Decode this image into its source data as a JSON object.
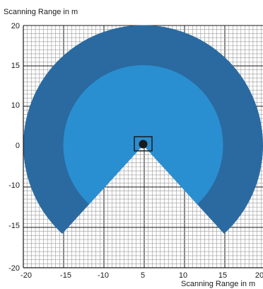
{
  "chart_data": {
    "type": "scanning-range-diagram",
    "title": "Scanning Range in m",
    "xlabel": "Scanning Range in m",
    "ylabel": "",
    "xlim": [
      -20,
      20
    ],
    "ylim": [
      -20,
      20
    ],
    "x_tick_labels": [
      "-20",
      "-15",
      "-10",
      "5",
      "5",
      "10",
      "15",
      "20"
    ],
    "y_tick_labels": [
      "20",
      "15",
      "10",
      "0",
      "-10",
      "-15",
      "-20"
    ],
    "grid": true,
    "fields": [
      {
        "name": "outer",
        "radius": 15,
        "opening_deg": 275,
        "color": "#2a6aa0"
      },
      {
        "name": "inner",
        "radius": 10,
        "opening_deg": 275,
        "color": "#2a8fd0"
      }
    ],
    "sensor": {
      "x": 0,
      "y": 0
    }
  }
}
